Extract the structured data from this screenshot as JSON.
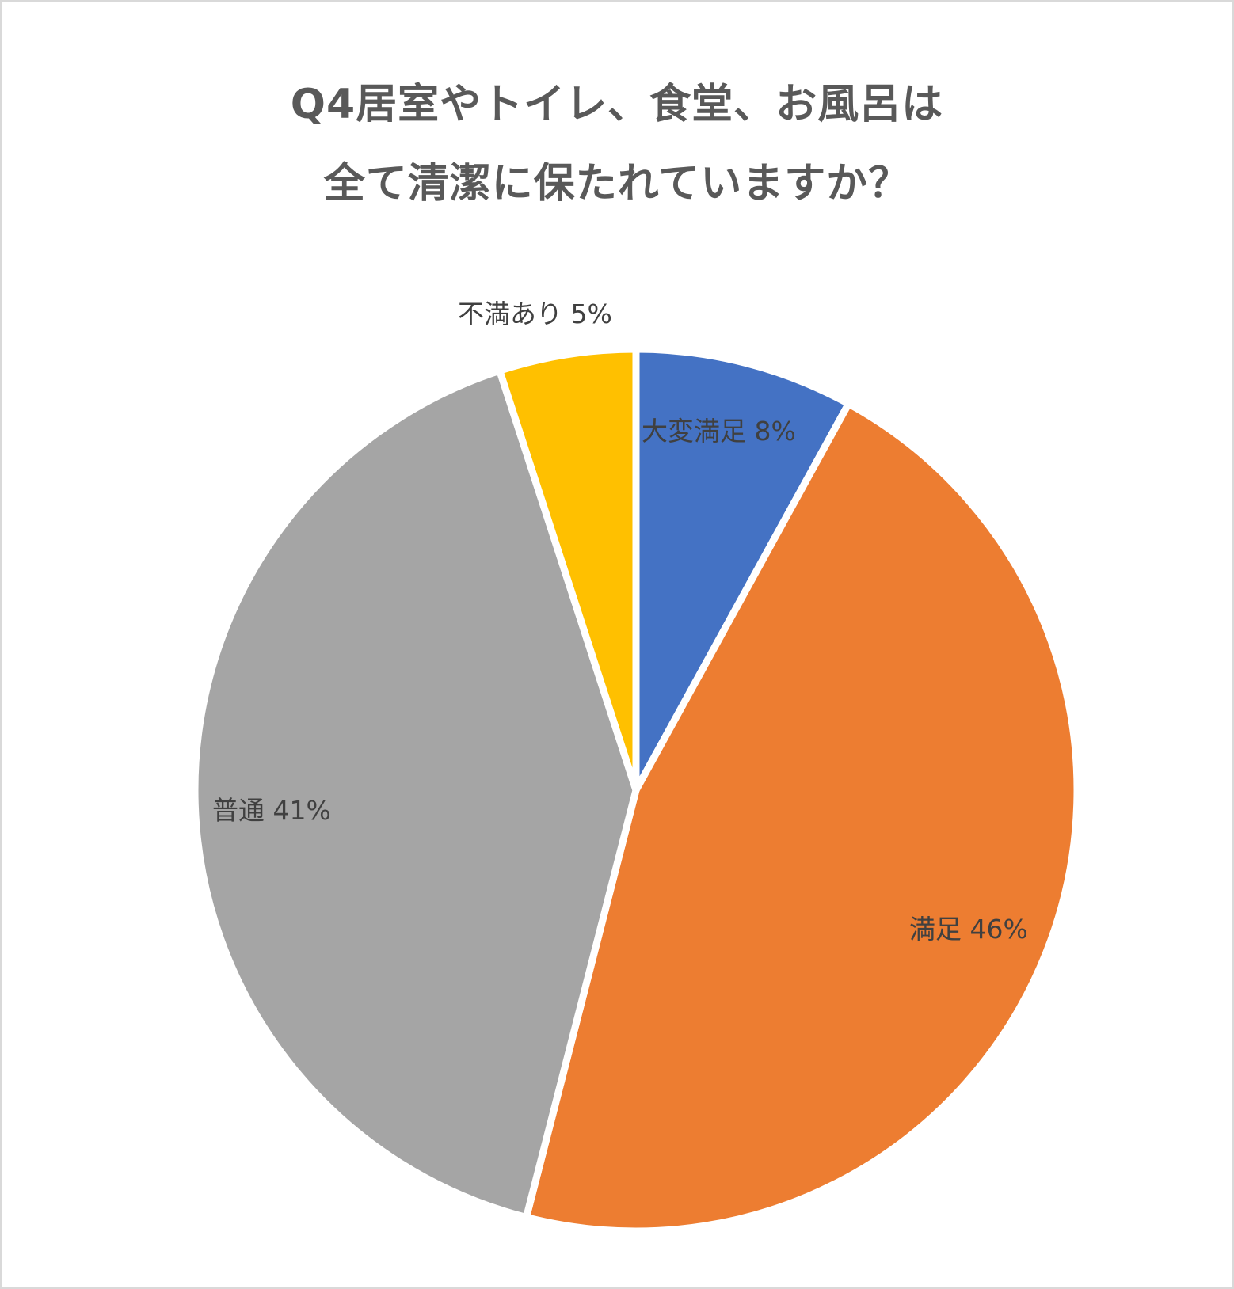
{
  "chart_data": {
    "type": "pie",
    "title_lines": [
      "Q4居室やトイレ、食堂、お風呂は",
      "全て清潔に保たれていますか？"
    ],
    "start_angle_deg": 0,
    "direction": "clockwise",
    "slices": [
      {
        "name": "大変満足",
        "value": 8,
        "label": "大変満足 8%",
        "color": "#4472C4"
      },
      {
        "name": "満足",
        "value": 46,
        "label": "満足 46%",
        "color": "#ED7D31"
      },
      {
        "name": "普通",
        "value": 41,
        "label": "普通 41%",
        "color": "#A5A5A5"
      },
      {
        "name": "不満あり",
        "value": 5,
        "label": "不満あり 5%",
        "color": "#FFC000"
      }
    ],
    "legend": "none"
  }
}
